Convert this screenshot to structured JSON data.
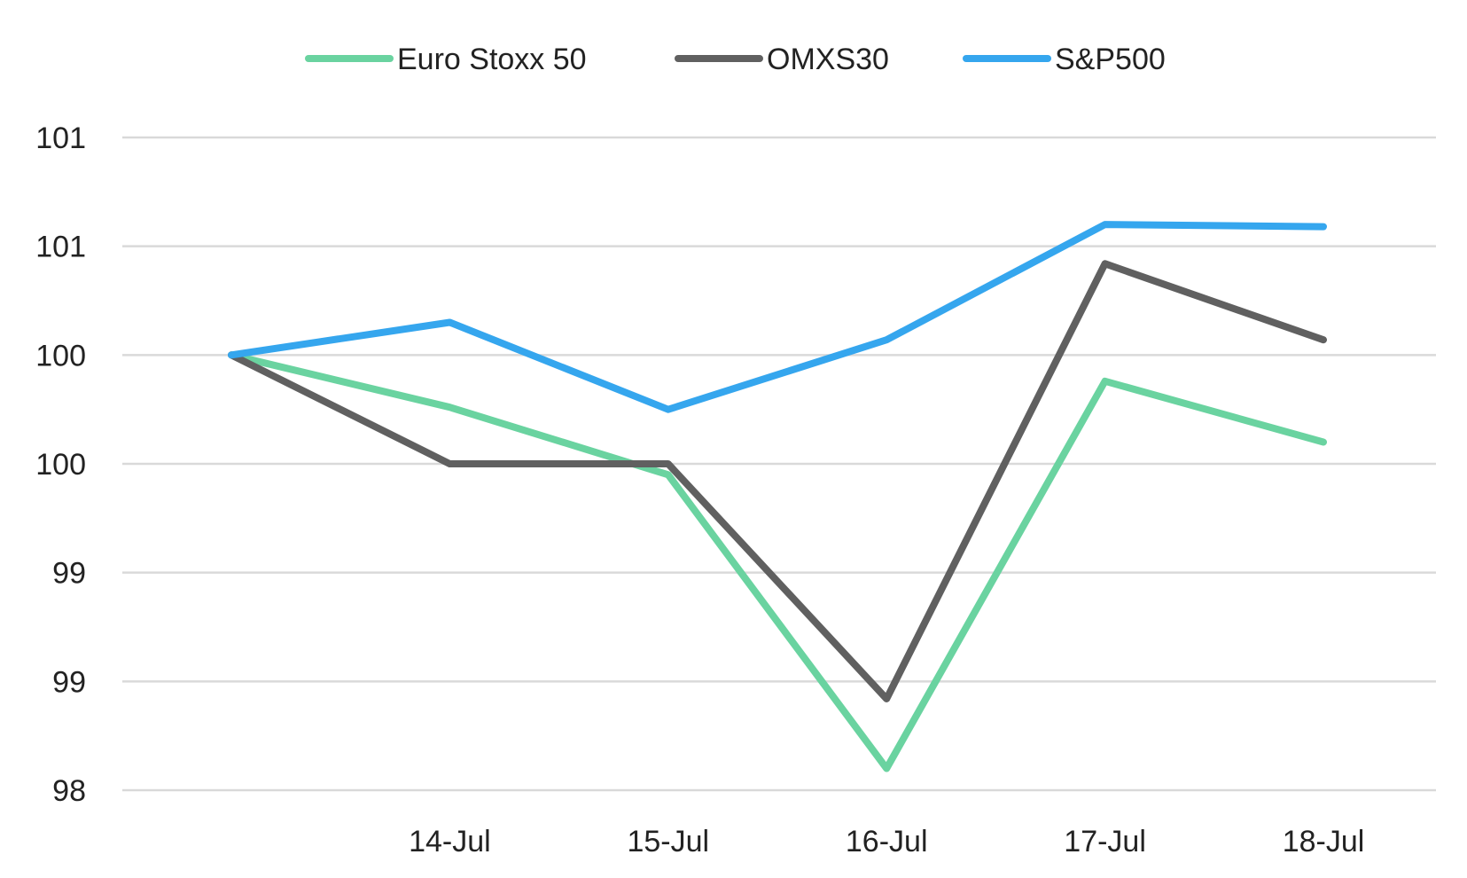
{
  "chart_data": {
    "type": "line",
    "categories": [
      "",
      "14-Jul",
      "15-Jul",
      "16-Jul",
      "17-Jul",
      "18-Jul"
    ],
    "y_tick_labels": [
      "98",
      "99",
      "99",
      "100",
      "100",
      "101",
      "101"
    ],
    "ylim": [
      98,
      101
    ],
    "grid": true,
    "legend_position": "top-center",
    "series": [
      {
        "name": "Euro Stoxx 50",
        "color": "#6ad3a0",
        "values": [
          100.0,
          99.76,
          99.45,
          98.1,
          99.88,
          99.6
        ]
      },
      {
        "name": "OMXS30",
        "color": "#606060",
        "values": [
          100.0,
          99.5,
          99.5,
          98.42,
          100.42,
          100.07
        ]
      },
      {
        "name": "S&P500",
        "color": "#35a6ee",
        "values": [
          100.0,
          100.15,
          99.75,
          100.07,
          100.6,
          100.59
        ]
      }
    ]
  }
}
